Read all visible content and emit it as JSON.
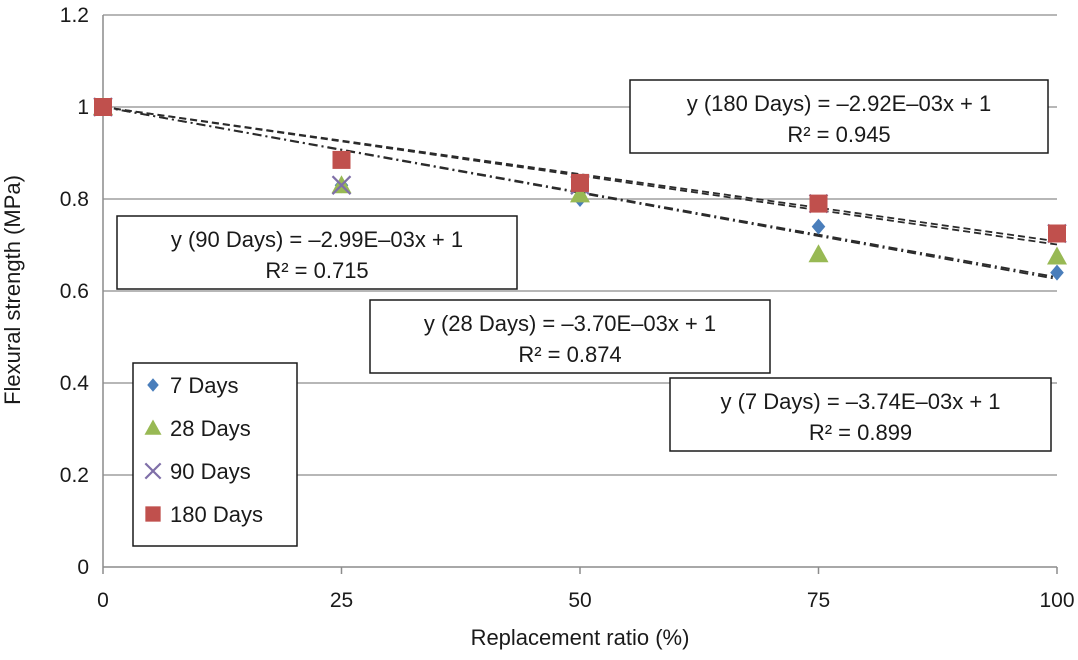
{
  "chart_data": {
    "type": "scatter",
    "xlabel": "Replacement ratio (%)",
    "ylabel": "Flexural strength (MPa)",
    "xlim": [
      0,
      100
    ],
    "ylim": [
      0,
      1.2
    ],
    "x_ticks": [
      "0",
      "25",
      "50",
      "75",
      "100"
    ],
    "y_ticks": [
      "0",
      "0.2",
      "0.4",
      "0.6",
      "0.8",
      "1",
      "1.2"
    ],
    "grid": "horizontal",
    "legend_position": "bottom-left",
    "series": [
      {
        "name": "7 Days",
        "marker": "diamond",
        "color": "#4a7ebb",
        "x": [
          0,
          25,
          50,
          75,
          100
        ],
        "y": [
          1.0,
          0.83,
          0.8,
          0.74,
          0.64
        ]
      },
      {
        "name": "28 Days",
        "marker": "triangle",
        "color": "#98b954",
        "x": [
          0,
          25,
          50,
          75,
          100
        ],
        "y": [
          1.0,
          0.83,
          0.81,
          0.68,
          0.675
        ]
      },
      {
        "name": "90 Days",
        "marker": "x",
        "color": "#7f6fa8",
        "x": [
          0,
          25,
          50,
          75,
          100
        ],
        "y": [
          1.0,
          0.83,
          0.83,
          0.79,
          0.725
        ]
      },
      {
        "name": "180 Days",
        "marker": "square",
        "color": "#c0504d",
        "x": [
          0,
          25,
          50,
          75,
          100
        ],
        "y": [
          1.0,
          0.885,
          0.835,
          0.79,
          0.725
        ]
      }
    ],
    "trendlines": [
      {
        "series": "180 Days",
        "slope": -0.00292,
        "intercept": 1,
        "style": "dash"
      },
      {
        "series": "90 Days",
        "slope": -0.00299,
        "intercept": 1,
        "style": "dash"
      },
      {
        "series": "28 Days",
        "slope": -0.0037,
        "intercept": 1,
        "style": "dashdot"
      },
      {
        "series": "7 Days",
        "slope": -0.00374,
        "intercept": 1,
        "style": "dashdot"
      }
    ],
    "annotations": [
      {
        "key": "eq180",
        "line1": "y (180 Days) = –2.92E–03x + 1",
        "line2": "R² = 0.945"
      },
      {
        "key": "eq90",
        "line1": "y (90 Days) = –2.99E–03x + 1",
        "line2": "R² = 0.715"
      },
      {
        "key": "eq28",
        "line1": "y (28 Days) = –3.70E–03x + 1",
        "line2": "R² = 0.874"
      },
      {
        "key": "eq7",
        "line1": "y (7 Days) = –3.74E–03x + 1",
        "line2": "R² = 0.899"
      }
    ]
  }
}
